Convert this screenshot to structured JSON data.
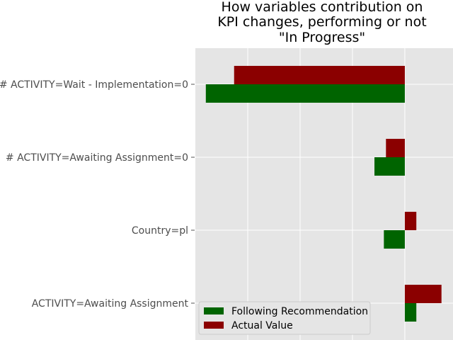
{
  "chart_data": {
    "type": "bar",
    "orientation": "horizontal",
    "title_lines": [
      "How variables contribution on",
      "KPI changes, performing or not",
      "\"In Progress\""
    ],
    "categories": [
      "# ACTIVITY=Wait - Implementation=0",
      "# ACTIVITY=Awaiting Assignment=0",
      "Country=pl",
      "ACTIVITY=Awaiting Assignment"
    ],
    "series": [
      {
        "name": "Following Recommendation",
        "color": "#006400",
        "values": [
          -3.8,
          -0.58,
          -0.4,
          0.22
        ]
      },
      {
        "name": "Actual Value",
        "color": "#8b0000",
        "values": [
          -3.26,
          -0.36,
          0.22,
          0.7
        ]
      }
    ],
    "xlim": [
      -4.0,
      0.92
    ],
    "grid": true,
    "legend_position": "lower-left"
  }
}
